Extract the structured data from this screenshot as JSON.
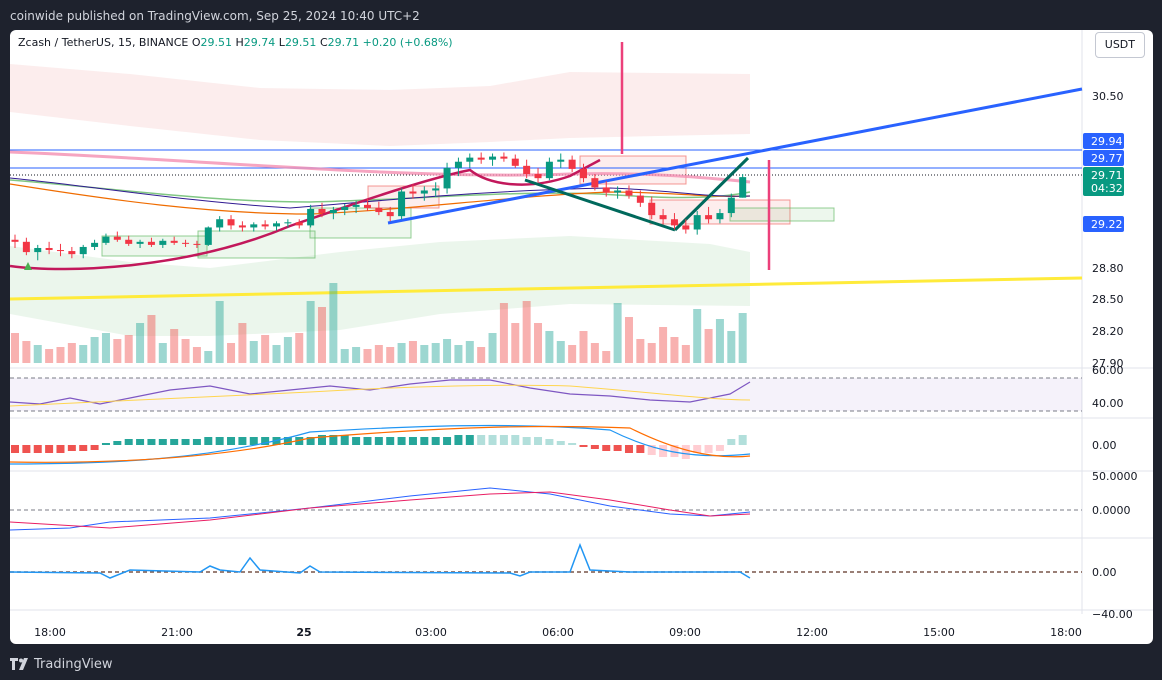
{
  "header": {
    "publisher": "coinwide published on TradingView.com, Sep 25, 2024 10:40 UTC+2"
  },
  "legend": {
    "symbol": "Zcash / TetherUS, 15, BINANCE",
    "o_label": "O",
    "o": "29.51",
    "h_label": "H",
    "h": "29.74",
    "l_label": "L",
    "l": "29.51",
    "c_label": "C",
    "c": "29.71",
    "change": "+0.20 (+0.68%)"
  },
  "currency": "USDT",
  "footer": {
    "brand": "TradingView"
  },
  "colors": {
    "up": "#26a69a",
    "down": "#ef5350",
    "background": "#1e222d",
    "trendline": "#2962ff",
    "support": "#ffeb3b"
  },
  "chart_data": {
    "type": "candlestick",
    "symbol": "Zcash / TetherUS",
    "interval": "15",
    "exchange": "BINANCE",
    "x_ticks": [
      "18:00",
      "21:00",
      "25",
      "03:00",
      "06:00",
      "09:00",
      "12:00",
      "15:00",
      "18:00"
    ],
    "y_ticks": [
      "30.50",
      "28.80",
      "28.50",
      "28.20",
      "27.90"
    ],
    "ylim": [
      27.9,
      30.75
    ],
    "price_labels": [
      {
        "value": "29.94",
        "color": "#2962ff"
      },
      {
        "value": "29.77",
        "color": "#2962ff"
      },
      {
        "value": "29.71",
        "color": "#089981"
      },
      {
        "value": "04:32",
        "color": "#089981"
      },
      {
        "value": "29.22",
        "color": "#2962ff"
      }
    ],
    "rsi": {
      "ticks": [
        "60.00",
        "40.00"
      ],
      "range": [
        30,
        70
      ]
    },
    "macd": {
      "ticks": [
        "0.00"
      ]
    },
    "panel3": {
      "ticks": [
        "50.0000",
        "0.0000"
      ]
    },
    "panel4": {
      "ticks": [
        "0.00",
        "−40.00"
      ]
    },
    "candles": [
      [
        29.1,
        29.15,
        29.02,
        29.08
      ],
      [
        29.08,
        29.12,
        28.95,
        28.98
      ],
      [
        28.98,
        29.05,
        28.9,
        29.02
      ],
      [
        29.02,
        29.08,
        28.96,
        29.0
      ],
      [
        29.0,
        29.06,
        28.94,
        28.99
      ],
      [
        28.99,
        29.03,
        28.92,
        28.96
      ],
      [
        28.96,
        29.05,
        28.92,
        29.03
      ],
      [
        29.03,
        29.1,
        29.0,
        29.07
      ],
      [
        29.07,
        29.16,
        29.05,
        29.13
      ],
      [
        29.13,
        29.18,
        29.08,
        29.1
      ],
      [
        29.1,
        29.14,
        29.04,
        29.06
      ],
      [
        29.06,
        29.1,
        29.02,
        29.08
      ],
      [
        29.08,
        29.12,
        29.03,
        29.05
      ],
      [
        29.05,
        29.11,
        29.02,
        29.09
      ],
      [
        29.09,
        29.13,
        29.05,
        29.07
      ],
      [
        29.07,
        29.1,
        29.03,
        29.06
      ],
      [
        29.06,
        29.09,
        29.02,
        29.05
      ],
      [
        29.05,
        29.23,
        29.04,
        29.22
      ],
      [
        29.22,
        29.33,
        29.18,
        29.3
      ],
      [
        29.3,
        29.34,
        29.2,
        29.24
      ],
      [
        29.24,
        29.28,
        29.18,
        29.22
      ],
      [
        29.22,
        29.27,
        29.18,
        29.25
      ],
      [
        29.25,
        29.29,
        29.2,
        29.23
      ],
      [
        29.23,
        29.28,
        29.19,
        29.26
      ],
      [
        29.26,
        29.3,
        29.22,
        29.27
      ],
      [
        29.27,
        29.3,
        29.21,
        29.24
      ],
      [
        29.24,
        29.44,
        29.22,
        29.4
      ],
      [
        29.4,
        29.46,
        29.32,
        29.36
      ],
      [
        29.36,
        29.42,
        29.3,
        29.39
      ],
      [
        29.39,
        29.45,
        29.34,
        29.42
      ],
      [
        29.42,
        29.48,
        29.36,
        29.44
      ],
      [
        29.44,
        29.5,
        29.38,
        29.41
      ],
      [
        29.41,
        29.47,
        29.34,
        29.37
      ],
      [
        29.37,
        29.42,
        29.28,
        29.33
      ],
      [
        29.33,
        29.6,
        29.3,
        29.57
      ],
      [
        29.57,
        29.64,
        29.5,
        29.55
      ],
      [
        29.55,
        29.62,
        29.48,
        29.58
      ],
      [
        29.58,
        29.66,
        29.52,
        29.6
      ],
      [
        29.6,
        29.85,
        29.55,
        29.8
      ],
      [
        29.8,
        29.9,
        29.72,
        29.86
      ],
      [
        29.86,
        29.94,
        29.8,
        29.9
      ],
      [
        29.9,
        29.95,
        29.84,
        29.88
      ],
      [
        29.88,
        29.94,
        29.82,
        29.91
      ],
      [
        29.91,
        29.95,
        29.86,
        29.89
      ],
      [
        29.89,
        29.93,
        29.8,
        29.82
      ],
      [
        29.82,
        29.88,
        29.7,
        29.74
      ],
      [
        29.74,
        29.8,
        29.66,
        29.7
      ],
      [
        29.7,
        29.9,
        29.68,
        29.86
      ],
      [
        29.86,
        29.94,
        29.8,
        29.88
      ],
      [
        29.88,
        29.92,
        29.76,
        29.79
      ],
      [
        29.79,
        29.84,
        29.66,
        29.7
      ],
      [
        29.7,
        29.74,
        29.58,
        29.61
      ],
      [
        29.61,
        29.67,
        29.52,
        29.56
      ],
      [
        29.56,
        29.62,
        29.5,
        29.58
      ],
      [
        29.58,
        29.63,
        29.5,
        29.53
      ],
      [
        29.53,
        29.58,
        29.42,
        29.46
      ],
      [
        29.46,
        29.52,
        29.3,
        29.34
      ],
      [
        29.34,
        29.4,
        29.25,
        29.3
      ],
      [
        29.3,
        29.36,
        29.2,
        29.24
      ],
      [
        29.24,
        29.3,
        29.16,
        29.2
      ],
      [
        29.2,
        29.38,
        29.15,
        29.34
      ],
      [
        29.34,
        29.42,
        29.26,
        29.3
      ],
      [
        29.3,
        29.4,
        29.26,
        29.36
      ],
      [
        29.36,
        29.55,
        29.32,
        29.51
      ],
      [
        29.51,
        29.74,
        29.51,
        29.71
      ]
    ],
    "volume": [
      30,
      22,
      18,
      14,
      16,
      20,
      18,
      26,
      30,
      24,
      28,
      40,
      48,
      20,
      34,
      24,
      16,
      12,
      62,
      20,
      40,
      22,
      28,
      18,
      26,
      30,
      62,
      56,
      80,
      14,
      16,
      14,
      18,
      16,
      20,
      22,
      18,
      20,
      24,
      18,
      22,
      16,
      30,
      60,
      40,
      62,
      40,
      32,
      22,
      18,
      32,
      20,
      12,
      60,
      46,
      24,
      20,
      36,
      26,
      18,
      54,
      34,
      44,
      32,
      50
    ]
  }
}
